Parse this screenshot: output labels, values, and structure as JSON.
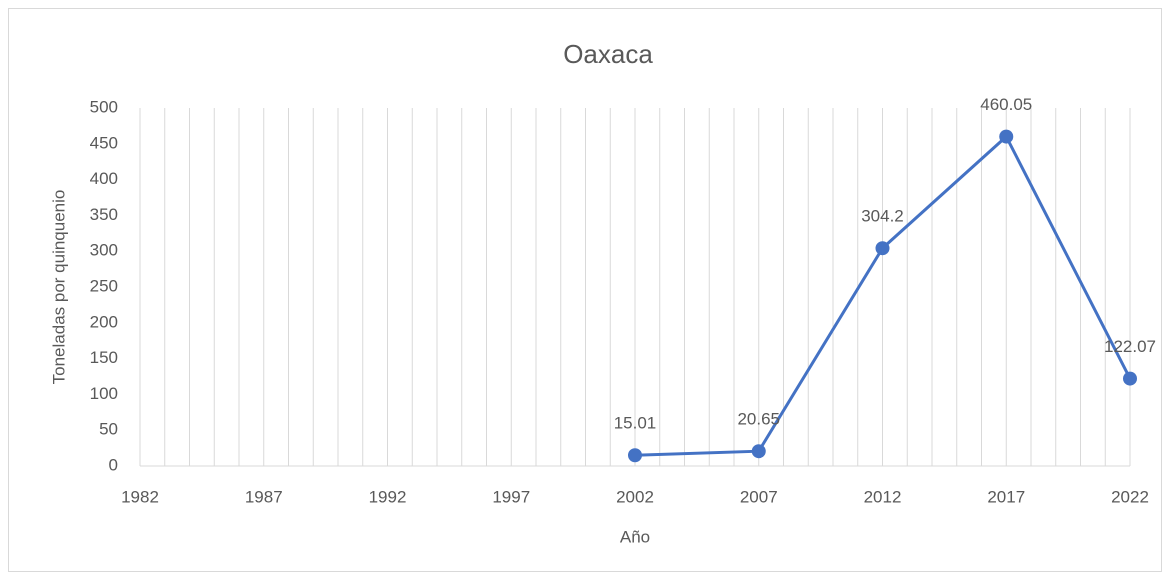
{
  "chart_data": {
    "type": "line",
    "title": "Oaxaca",
    "x_label": "Año",
    "y_label": "Toneladas por quinquenio",
    "x": [
      2002,
      2007,
      2012,
      2017,
      2022
    ],
    "series": [
      {
        "name": "Oaxaca",
        "color": "#4472c4",
        "values": [
          15.01,
          20.65,
          304.2,
          460.05,
          122.07
        ]
      }
    ],
    "xlim": [
      1982,
      2022
    ],
    "xticks": [
      1982,
      1987,
      1992,
      1997,
      2002,
      2007,
      2012,
      2017,
      2022
    ],
    "x_grid_step": 1,
    "grid": true,
    "ylim": [
      0,
      500
    ],
    "yticks": [
      0,
      50,
      100,
      150,
      200,
      250,
      300,
      350,
      400,
      450,
      500
    ]
  }
}
